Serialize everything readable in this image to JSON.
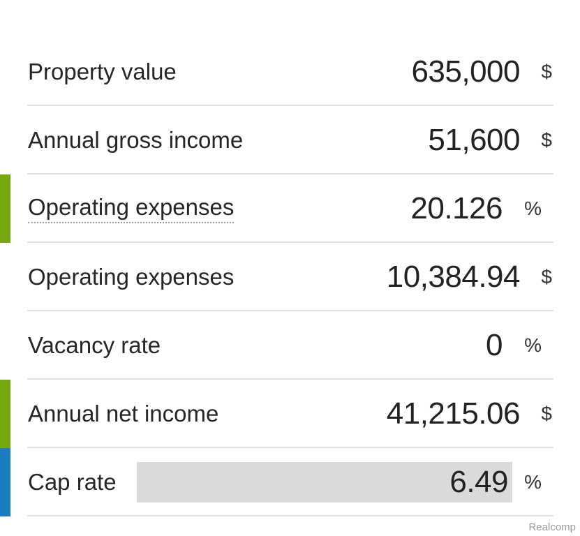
{
  "colors": {
    "marker_green": "#76a812",
    "marker_blue": "#1a7dbf",
    "readonly_field": "#d9dadb"
  },
  "rows": [
    {
      "label": "Property value",
      "value": "635,000",
      "unit": "$"
    },
    {
      "label": "Annual gross income",
      "value": "51,600",
      "unit": "$"
    },
    {
      "label": "Operating expenses",
      "value": "20.126",
      "unit": "%"
    },
    {
      "label": "Operating expenses",
      "value": "10,384.94",
      "unit": "$"
    },
    {
      "label": "Vacancy rate",
      "value": "0",
      "unit": "%"
    },
    {
      "label": "Annual net income",
      "value": "41,215.06",
      "unit": "$"
    },
    {
      "label": "Cap rate",
      "value": "6.49",
      "unit": "%"
    }
  ],
  "watermark": "Realcomp"
}
